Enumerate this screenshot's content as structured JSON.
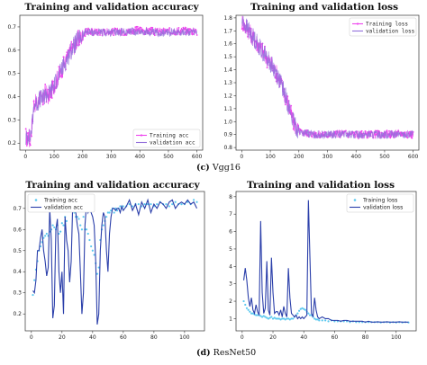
{
  "captions": {
    "vgg": {
      "letter": "(c)",
      "name": "Vgg16"
    },
    "resnet": {
      "letter": "(d)",
      "name": "ResNet50"
    }
  },
  "colors": {
    "vgg_train": "#ee44ee",
    "vgg_val": "#9370db",
    "res_train": "#5bc8ef",
    "res_val": "#2b3faa"
  },
  "chart_data": [
    {
      "id": "vgg_acc",
      "type": "line",
      "title": "Training and validation accuracy",
      "xlim": [
        -20,
        620
      ],
      "ylim": [
        0.17,
        0.75
      ],
      "xticks": [
        0,
        100,
        200,
        300,
        400,
        500,
        600
      ],
      "yticks": [
        0.2,
        0.3,
        0.4,
        0.5,
        0.6,
        0.7
      ],
      "ytick_decimals": 1,
      "grid": false,
      "legend": "bottom-right",
      "noise": true,
      "series": [
        {
          "name": "Training acc",
          "style": "line-markers",
          "color": "#ee44ee",
          "x": [
            1,
            5,
            10,
            15,
            20,
            25,
            30,
            40,
            50,
            60,
            70,
            80,
            100,
            120,
            140,
            160,
            180,
            190,
            200,
            210,
            250,
            300,
            350,
            400,
            450,
            500,
            550,
            600
          ],
          "y": [
            0.23,
            0.21,
            0.24,
            0.2,
            0.26,
            0.3,
            0.38,
            0.36,
            0.4,
            0.38,
            0.42,
            0.4,
            0.45,
            0.5,
            0.55,
            0.6,
            0.64,
            0.65,
            0.66,
            0.68,
            0.68,
            0.68,
            0.68,
            0.685,
            0.68,
            0.68,
            0.685,
            0.68
          ]
        },
        {
          "name": "validation acc",
          "style": "line",
          "color": "#9370db",
          "x": [
            1,
            5,
            10,
            15,
            20,
            25,
            30,
            40,
            50,
            60,
            70,
            80,
            100,
            120,
            140,
            160,
            180,
            190,
            200,
            210,
            250,
            300,
            350,
            400,
            450,
            500,
            550,
            600
          ],
          "y": [
            0.22,
            0.22,
            0.24,
            0.22,
            0.25,
            0.3,
            0.37,
            0.37,
            0.39,
            0.39,
            0.41,
            0.41,
            0.45,
            0.5,
            0.55,
            0.6,
            0.64,
            0.65,
            0.66,
            0.68,
            0.675,
            0.675,
            0.68,
            0.68,
            0.675,
            0.675,
            0.68,
            0.675
          ]
        }
      ]
    },
    {
      "id": "vgg_loss",
      "type": "line",
      "title": "Training and validation loss",
      "xlim": [
        -20,
        620
      ],
      "ylim": [
        0.78,
        1.82
      ],
      "xticks": [
        0,
        100,
        200,
        300,
        400,
        500,
        600
      ],
      "yticks": [
        0.8,
        0.9,
        1.0,
        1.1,
        1.2,
        1.3,
        1.4,
        1.5,
        1.6,
        1.7,
        1.8
      ],
      "ytick_decimals": 1,
      "grid": false,
      "legend": "top-right",
      "noise": true,
      "series": [
        {
          "name": "Training loss",
          "style": "line-markers",
          "color": "#ee44ee",
          "x": [
            1,
            10,
            20,
            30,
            50,
            70,
            100,
            120,
            140,
            160,
            180,
            200,
            250,
            300,
            350,
            400,
            450,
            500,
            550,
            600
          ],
          "y": [
            1.77,
            1.74,
            1.72,
            1.68,
            1.62,
            1.55,
            1.45,
            1.38,
            1.28,
            1.15,
            1.0,
            0.92,
            0.9,
            0.9,
            0.91,
            0.9,
            0.9,
            0.9,
            0.91,
            0.9
          ]
        },
        {
          "name": "validation loss",
          "style": "line",
          "color": "#9370db",
          "x": [
            1,
            10,
            20,
            30,
            50,
            70,
            100,
            120,
            140,
            160,
            180,
            200,
            250,
            300,
            350,
            400,
            450,
            500,
            550,
            600
          ],
          "y": [
            1.77,
            1.75,
            1.72,
            1.68,
            1.62,
            1.55,
            1.45,
            1.38,
            1.28,
            1.15,
            1.0,
            0.92,
            0.9,
            0.9,
            0.9,
            0.9,
            0.9,
            0.9,
            0.9,
            0.9
          ]
        }
      ]
    },
    {
      "id": "res_acc",
      "type": "line",
      "title": "Training and validation accuracy",
      "xlim": [
        -4,
        113
      ],
      "ylim": [
        0.12,
        0.78
      ],
      "xticks": [
        0,
        20,
        40,
        60,
        80,
        100
      ],
      "yticks": [
        0.2,
        0.3,
        0.4,
        0.5,
        0.6,
        0.7
      ],
      "ytick_decimals": 1,
      "grid": false,
      "legend": "top-left",
      "noise": false,
      "series": [
        {
          "name": "Training acc",
          "style": "dots",
          "color": "#5bc8ef",
          "x": [
            1,
            2,
            3,
            4,
            5,
            6,
            7,
            8,
            9,
            10,
            11,
            12,
            13,
            14,
            15,
            16,
            17,
            18,
            19,
            20,
            21,
            22,
            23,
            24,
            25,
            26,
            27,
            28,
            29,
            30,
            31,
            32,
            33,
            34,
            35,
            36,
            37,
            38,
            39,
            40,
            41,
            42,
            43,
            44,
            45,
            46,
            47,
            48,
            49,
            50,
            51,
            52,
            53,
            54,
            55,
            56,
            57,
            58,
            59,
            60,
            62,
            64,
            66,
            68,
            70,
            72,
            74,
            76,
            78,
            80,
            82,
            84,
            86,
            88,
            90,
            92,
            94,
            96,
            98,
            100,
            102,
            104,
            106,
            108
          ],
          "y": [
            0.29,
            0.36,
            0.41,
            0.45,
            0.5,
            0.52,
            0.54,
            0.56,
            0.57,
            0.58,
            0.57,
            0.59,
            0.6,
            0.62,
            0.61,
            0.6,
            0.62,
            0.58,
            0.59,
            0.63,
            0.62,
            0.66,
            0.64,
            0.72,
            0.74,
            0.74,
            0.76,
            0.68,
            0.66,
            0.66,
            0.65,
            0.62,
            0.6,
            0.66,
            0.6,
            0.6,
            0.58,
            0.55,
            0.52,
            0.5,
            0.48,
            0.44,
            0.39,
            0.42,
            0.55,
            0.6,
            0.62,
            0.64,
            0.66,
            0.68,
            0.68,
            0.69,
            0.7,
            0.68,
            0.7,
            0.69,
            0.7,
            0.71,
            0.7,
            0.71,
            0.71,
            0.72,
            0.71,
            0.72,
            0.72,
            0.71,
            0.72,
            0.72,
            0.72,
            0.71,
            0.72,
            0.73,
            0.72,
            0.72,
            0.71,
            0.72,
            0.73,
            0.72,
            0.72,
            0.72,
            0.73,
            0.72,
            0.74,
            0.73
          ]
        },
        {
          "name": "validation acc",
          "style": "line",
          "color": "#2b3faa",
          "x": [
            1,
            2,
            3,
            4,
            5,
            6,
            7,
            8,
            9,
            10,
            11,
            12,
            13,
            14,
            15,
            16,
            17,
            18,
            19,
            20,
            21,
            22,
            23,
            24,
            25,
            26,
            27,
            28,
            29,
            30,
            31,
            32,
            33,
            34,
            35,
            36,
            37,
            38,
            39,
            40,
            41,
            42,
            43,
            44,
            45,
            46,
            47,
            48,
            49,
            50,
            51,
            52,
            53,
            54,
            55,
            56,
            57,
            58,
            59,
            60,
            62,
            64,
            66,
            68,
            70,
            72,
            74,
            76,
            78,
            80,
            82,
            84,
            86,
            88,
            90,
            92,
            94,
            96,
            98,
            100,
            102,
            104,
            106,
            108
          ],
          "y": [
            0.31,
            0.3,
            0.36,
            0.5,
            0.5,
            0.56,
            0.6,
            0.5,
            0.45,
            0.38,
            0.42,
            0.7,
            0.55,
            0.18,
            0.24,
            0.6,
            0.65,
            0.4,
            0.3,
            0.4,
            0.2,
            0.66,
            0.55,
            0.5,
            0.35,
            0.45,
            0.72,
            0.7,
            0.68,
            0.62,
            0.58,
            0.4,
            0.2,
            0.3,
            0.62,
            0.72,
            0.68,
            0.7,
            0.68,
            0.66,
            0.62,
            0.45,
            0.15,
            0.2,
            0.5,
            0.62,
            0.68,
            0.66,
            0.5,
            0.4,
            0.58,
            0.66,
            0.7,
            0.7,
            0.69,
            0.7,
            0.7,
            0.68,
            0.71,
            0.69,
            0.71,
            0.74,
            0.69,
            0.72,
            0.67,
            0.73,
            0.7,
            0.74,
            0.68,
            0.72,
            0.7,
            0.73,
            0.72,
            0.7,
            0.73,
            0.74,
            0.7,
            0.72,
            0.73,
            0.72,
            0.74,
            0.72,
            0.73,
            0.7
          ]
        }
      ]
    },
    {
      "id": "res_loss",
      "type": "line",
      "title": "Training and validation loss",
      "xlim": [
        -4,
        113
      ],
      "ylim": [
        0.3,
        8.3
      ],
      "xticks": [
        0,
        20,
        40,
        60,
        80,
        100
      ],
      "yticks": [
        1,
        2,
        3,
        4,
        5,
        6,
        7,
        8
      ],
      "ytick_decimals": 0,
      "grid": false,
      "legend": "top-right",
      "noise": false,
      "series": [
        {
          "name": "Training loss",
          "style": "dots",
          "color": "#5bc8ef",
          "x": [
            1,
            2,
            3,
            4,
            5,
            6,
            7,
            8,
            9,
            10,
            11,
            12,
            13,
            14,
            15,
            16,
            17,
            18,
            19,
            20,
            21,
            22,
            23,
            24,
            25,
            26,
            27,
            28,
            29,
            30,
            31,
            32,
            33,
            34,
            35,
            36,
            37,
            38,
            39,
            40,
            41,
            42,
            43,
            44,
            45,
            46,
            47,
            48,
            49,
            50,
            52,
            54,
            56,
            58,
            60,
            62,
            64,
            66,
            68,
            70,
            72,
            74,
            76,
            78,
            80,
            82,
            84,
            86,
            88,
            90,
            92,
            94,
            96,
            98,
            100,
            102,
            104,
            106,
            108
          ],
          "y": [
            2.0,
            1.8,
            1.6,
            1.5,
            1.4,
            1.3,
            1.3,
            1.25,
            1.2,
            1.2,
            1.2,
            1.15,
            1.1,
            1.15,
            1.1,
            1.05,
            1.0,
            1.05,
            1.1,
            1.0,
            1.05,
            1.0,
            1.0,
            1.0,
            0.95,
            1.0,
            1.0,
            0.95,
            1.0,
            1.0,
            0.95,
            1.0,
            1.0,
            1.1,
            1.2,
            1.3,
            1.45,
            1.55,
            1.6,
            1.55,
            1.5,
            1.4,
            1.3,
            1.2,
            1.2,
            1.1,
            1.0,
            0.95,
            0.95,
            0.9,
            0.9,
            0.9,
            0.85,
            0.9,
            0.85,
            0.85,
            0.85,
            0.85,
            0.85,
            0.8,
            0.85,
            0.8,
            0.8,
            0.8,
            0.8,
            0.8,
            0.8,
            0.8,
            0.8,
            0.78,
            0.8,
            0.8,
            0.78,
            0.8,
            0.78,
            0.8,
            0.78,
            0.8,
            0.78
          ]
        },
        {
          "name": "validation loss",
          "style": "line",
          "color": "#2b3faa",
          "x": [
            1,
            2,
            3,
            4,
            5,
            6,
            7,
            8,
            9,
            10,
            11,
            12,
            13,
            14,
            15,
            16,
            17,
            18,
            19,
            20,
            21,
            22,
            23,
            24,
            25,
            26,
            27,
            28,
            29,
            30,
            31,
            32,
            33,
            34,
            35,
            36,
            37,
            38,
            39,
            40,
            41,
            42,
            43,
            44,
            45,
            46,
            47,
            48,
            49,
            50,
            52,
            54,
            56,
            58,
            60,
            62,
            64,
            66,
            68,
            70,
            72,
            74,
            76,
            78,
            80,
            82,
            84,
            86,
            88,
            90,
            92,
            94,
            96,
            98,
            100,
            102,
            104,
            106,
            108
          ],
          "y": [
            3.2,
            3.9,
            3.2,
            2.2,
            1.7,
            2.2,
            1.5,
            1.3,
            1.8,
            1.4,
            1.2,
            6.6,
            2.5,
            1.3,
            1.6,
            4.3,
            1.5,
            1.2,
            4.5,
            2.5,
            1.3,
            1.4,
            1.4,
            1.2,
            1.5,
            1.1,
            1.7,
            1.3,
            1.1,
            3.9,
            2.2,
            1.3,
            1.2,
            1.1,
            1.2,
            1.0,
            1.1,
            1.0,
            1.1,
            1.0,
            1.1,
            1.2,
            7.8,
            4.5,
            1.3,
            1.1,
            2.2,
            1.5,
            1.1,
            1.0,
            1.1,
            1.0,
            1.0,
            0.9,
            0.9,
            0.9,
            0.85,
            0.9,
            0.9,
            0.85,
            0.85,
            0.85,
            0.85,
            0.85,
            0.8,
            0.85,
            0.8,
            0.8,
            0.82,
            0.8,
            0.8,
            0.82,
            0.8,
            0.8,
            0.8,
            0.82,
            0.8,
            0.8,
            0.8
          ]
        }
      ]
    }
  ]
}
